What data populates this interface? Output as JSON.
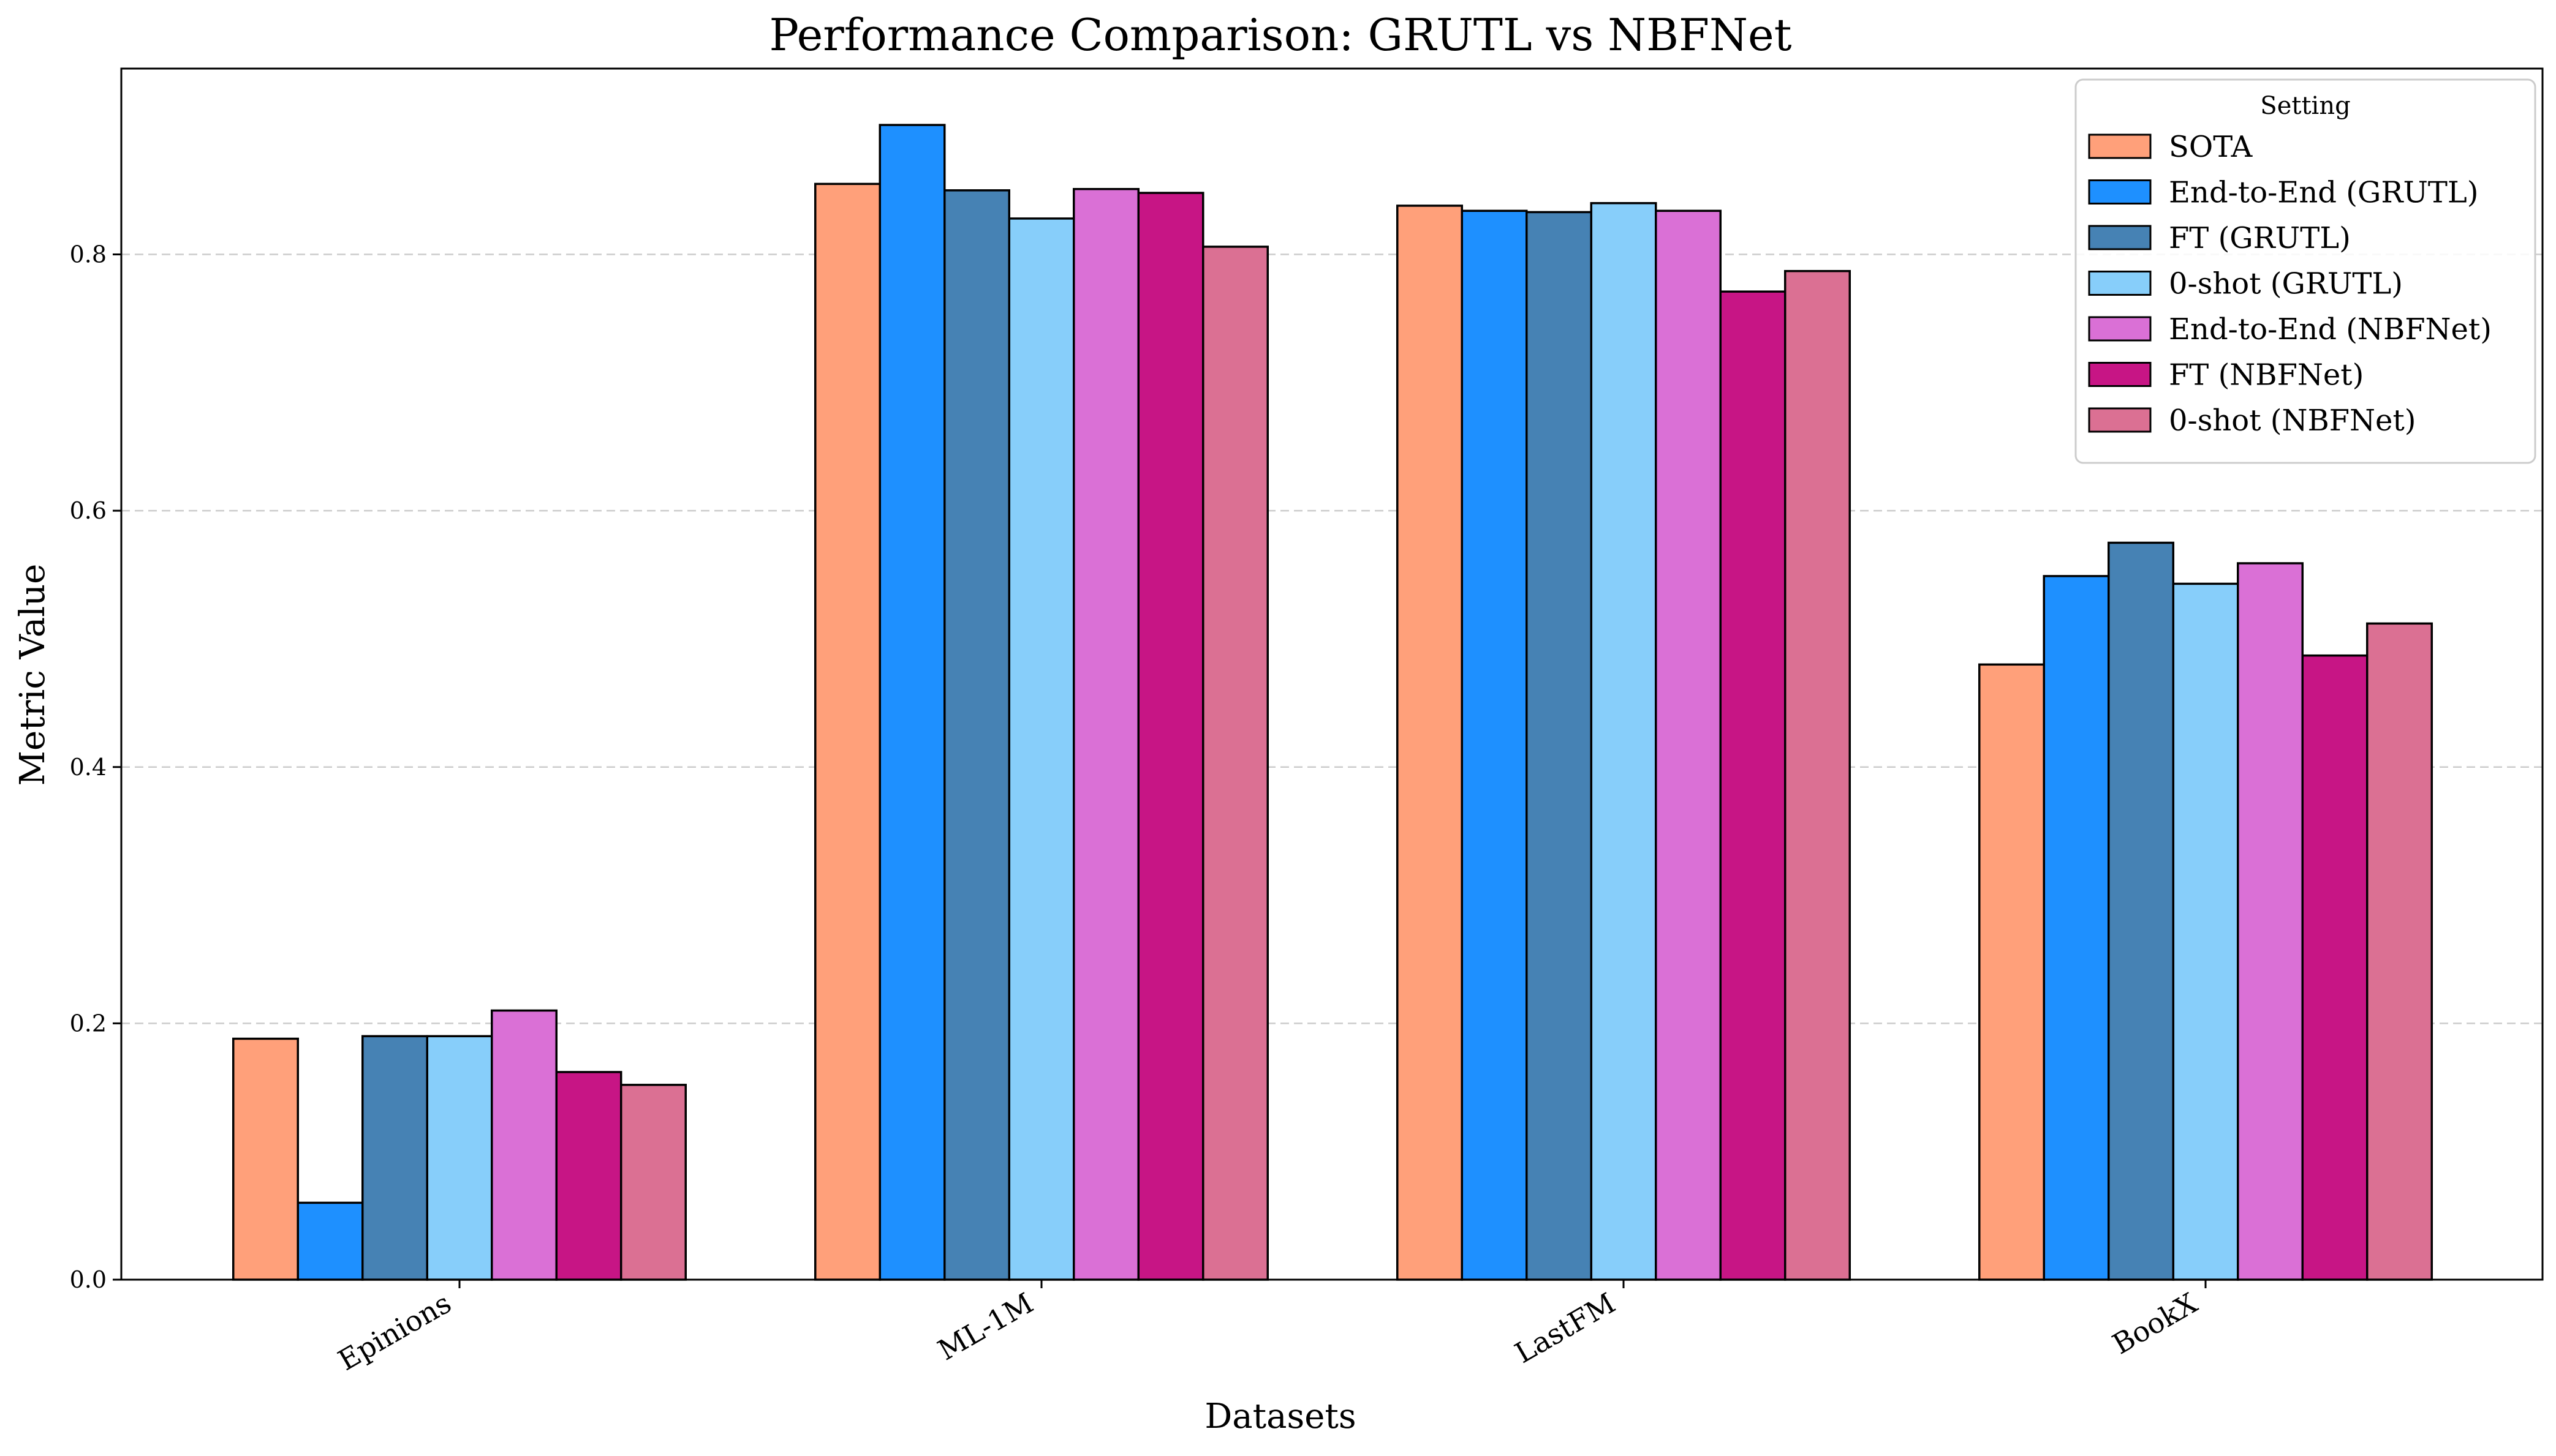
{
  "chart_data": {
    "type": "bar",
    "title": "Performance Comparison: GRUTL vs NBFNet",
    "xlabel": "Datasets",
    "ylabel": "Metric Value",
    "categories": [
      "Epinions",
      "ML-1M",
      "LastFM",
      "BookX"
    ],
    "ylim": [
      0,
      0.945
    ],
    "yticks": [
      "0.0",
      "0.2",
      "0.4",
      "0.6",
      "0.8"
    ],
    "grid": "y-dashed",
    "legend": {
      "title": "Setting",
      "position": "top-right"
    },
    "series": [
      {
        "name": "SOTA",
        "color": "#FFA07A",
        "values": [
          0.188,
          0.855,
          0.838,
          0.48
        ]
      },
      {
        "name": "End-to-End (GRUTL)",
        "color": "#1E90FF",
        "values": [
          0.06,
          0.901,
          0.834,
          0.549
        ]
      },
      {
        "name": "FT (GRUTL)",
        "color": "#4682B4",
        "values": [
          0.19,
          0.85,
          0.833,
          0.575
        ]
      },
      {
        "name": "0-shot (GRUTL)",
        "color": "#87CEFA",
        "values": [
          0.19,
          0.828,
          0.84,
          0.543
        ]
      },
      {
        "name": "End-to-End (NBFNet)",
        "color": "#DA70D6",
        "values": [
          0.21,
          0.851,
          0.834,
          0.559
        ]
      },
      {
        "name": "FT (NBFNet)",
        "color": "#C71585",
        "values": [
          0.162,
          0.848,
          0.771,
          0.487
        ]
      },
      {
        "name": "0-shot (NBFNet)",
        "color": "#DB7093",
        "values": [
          0.152,
          0.806,
          0.787,
          0.512
        ]
      }
    ]
  }
}
